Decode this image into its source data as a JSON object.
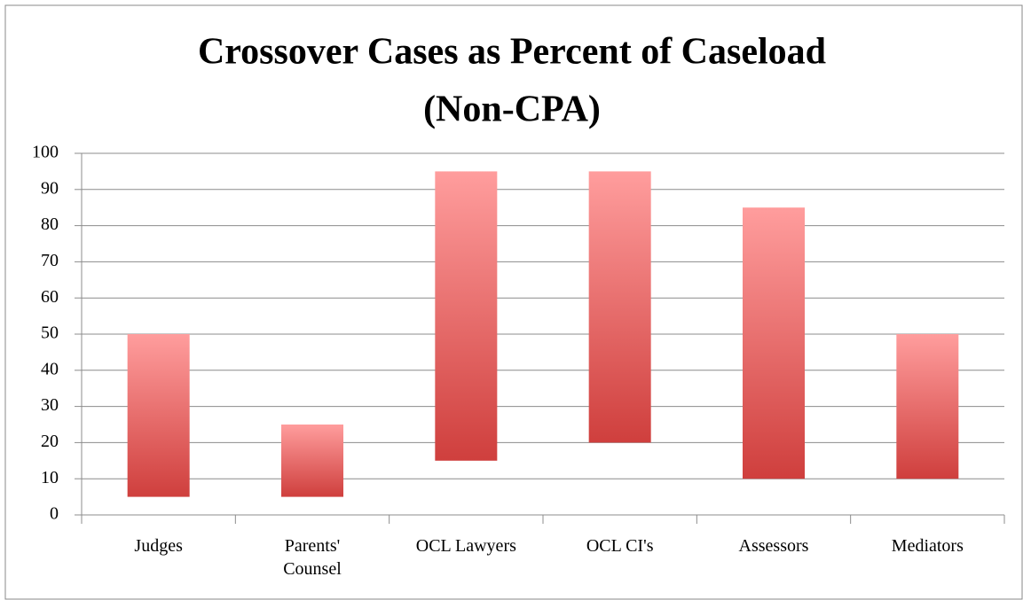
{
  "chart_data": {
    "type": "range_bar",
    "title": [
      "Crossover Cases as Percent of Caseload",
      "(Non-CPA)"
    ],
    "categories": [
      "Judges",
      "Parents' Counsel",
      "OCL Lawyers",
      "OCL CI's",
      "Assessors",
      "Mediators"
    ],
    "low": [
      5,
      5,
      15,
      20,
      10,
      10
    ],
    "high": [
      50,
      25,
      95,
      95,
      85,
      50
    ],
    "color_top": "#ff9d9d",
    "color_bottom": "#cf3f3d",
    "ylim": [
      0,
      100
    ],
    "yticks": [
      0,
      10,
      20,
      30,
      40,
      50,
      60,
      70,
      80,
      90,
      100
    ],
    "grid": true
  }
}
